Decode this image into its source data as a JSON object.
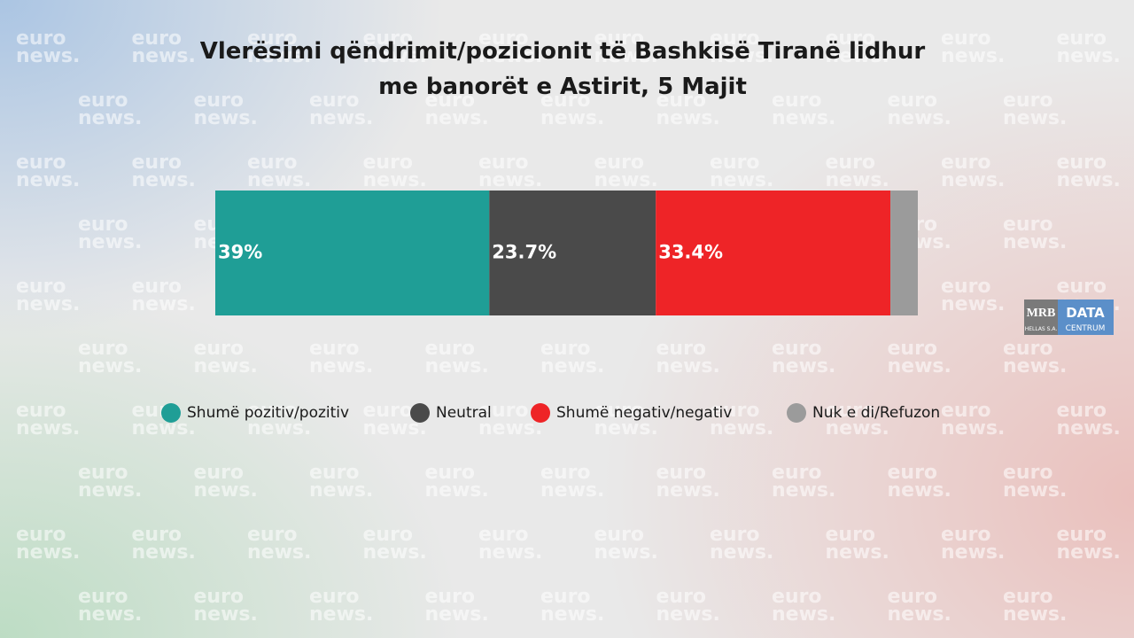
{
  "chart_data": {
    "type": "stacked_bar",
    "title": "Vlerësimi qëndrimit/pozicionit të Bashkisë Tiranë lidhur me banorët e Astirit, 5 Majit",
    "xlim": [
      0,
      100
    ],
    "series": [
      {
        "name": "Shumë pozitiv/pozitiv",
        "color": "#1f9e96",
        "values": [
          39
        ],
        "value_labels": [
          "39%"
        ]
      },
      {
        "name": "Neutral",
        "color": "#4a4a4a",
        "values": [
          23.7
        ],
        "value_labels": [
          "23.7%"
        ]
      },
      {
        "name": "Shumë negativ/negativ",
        "color": "#ee2427",
        "values": [
          33.4
        ],
        "value_labels": [
          "33.4%"
        ]
      },
      {
        "name": "Nuk e di/Refuzon",
        "color": "#9b9b9b",
        "values": [
          3.9
        ]
      }
    ],
    "legend": "bottom"
  },
  "watermark": [
    "euro",
    "news."
  ],
  "logo": {
    "left": [
      "MRB",
      "HELLAS S.A."
    ],
    "right": [
      "DATA",
      "CENTRUM"
    ]
  }
}
